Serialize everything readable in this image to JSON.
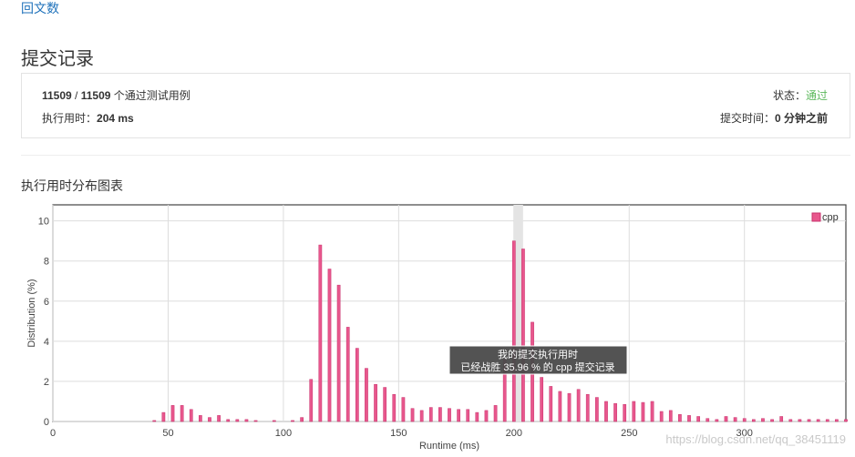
{
  "nav": {
    "back_link": "回文数"
  },
  "header": {
    "title": "提交记录"
  },
  "summary": {
    "passed": "11509",
    "sep": " / ",
    "total": "11509",
    "cases_suffix": " 个通过测试用例",
    "status_label": "状态：",
    "status_value": "通过",
    "runtime_label": "执行用时：",
    "runtime_value": "204 ms",
    "submit_time_label": "提交时间：",
    "submit_time_value": "0 分钟之前"
  },
  "chart_section": {
    "title": "执行用时分布图表"
  },
  "tooltip": {
    "line1": "我的提交执行用时",
    "line2": "已经战胜 35.96 % 的 cpp 提交记录"
  },
  "watermark": "https://blog.csdn.net/qq_38451119",
  "colors": {
    "bar": "#e8578d",
    "bar_stroke": "#c9316c",
    "status_ok": "#5cb85c",
    "link": "#1f72bb"
  },
  "chart_data": {
    "type": "bar",
    "title": "",
    "xlabel": "Runtime (ms)",
    "ylabel": "Distribution (%)",
    "xlim": [
      0,
      344
    ],
    "ylim": [
      0,
      10.8
    ],
    "xticks": [
      0,
      50,
      100,
      150,
      200,
      250,
      300
    ],
    "yticks": [
      0,
      2,
      4,
      6,
      8,
      10
    ],
    "legend_position": "top-right",
    "grid": true,
    "highlight_x": 202,
    "series": [
      {
        "name": "cpp",
        "x": [
          44,
          48,
          52,
          56,
          60,
          64,
          68,
          72,
          76,
          80,
          84,
          88,
          92,
          96,
          100,
          104,
          108,
          112,
          116,
          120,
          124,
          128,
          132,
          136,
          140,
          144,
          148,
          152,
          156,
          160,
          164,
          168,
          172,
          176,
          180,
          184,
          188,
          192,
          196,
          200,
          204,
          208,
          212,
          216,
          220,
          224,
          228,
          232,
          236,
          240,
          244,
          248,
          252,
          256,
          260,
          264,
          268,
          272,
          276,
          280,
          284,
          288,
          292,
          296,
          300,
          304,
          308,
          312,
          316,
          320,
          324,
          328,
          332,
          336,
          340,
          344
        ],
        "values": [
          0.05,
          0.45,
          0.8,
          0.8,
          0.6,
          0.3,
          0.2,
          0.3,
          0.1,
          0.1,
          0.1,
          0.05,
          0,
          0.05,
          0,
          0.05,
          0.2,
          2.1,
          8.8,
          7.6,
          6.8,
          4.7,
          3.65,
          2.65,
          1.85,
          1.7,
          1.35,
          1.2,
          0.65,
          0.55,
          0.7,
          0.7,
          0.65,
          0.6,
          0.6,
          0.45,
          0.55,
          0.8,
          3.1,
          9.0,
          8.6,
          4.95,
          2.2,
          1.75,
          1.5,
          1.4,
          1.6,
          1.35,
          1.2,
          1.0,
          0.9,
          0.85,
          1.0,
          0.95,
          1.0,
          0.5,
          0.55,
          0.35,
          0.3,
          0.25,
          0.15,
          0.1,
          0.25,
          0.2,
          0.15,
          0.1,
          0.15,
          0.1,
          0.25,
          0.1,
          0.1,
          0.1,
          0.1,
          0.1,
          0.1,
          0.1
        ]
      }
    ]
  }
}
